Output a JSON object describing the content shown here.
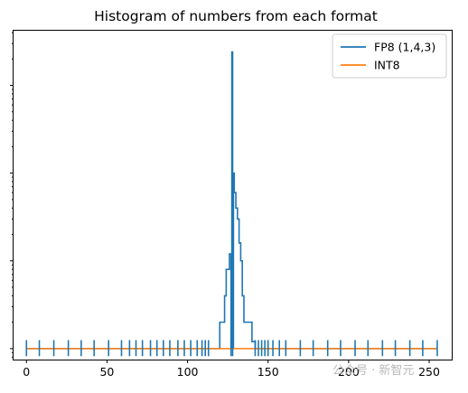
{
  "chart_data": {
    "type": "line",
    "title": "Histogram of numbers from each format",
    "xlabel": "",
    "ylabel": "",
    "xlim": [
      -8,
      264
    ],
    "x_ticks": [
      0,
      50,
      100,
      150,
      200,
      250
    ],
    "y_scale": "log",
    "ylim": [
      0.75,
      4200
    ],
    "grid": false,
    "legend_placement": "top-right",
    "series": [
      {
        "name": "FP8 (1,4,3)",
        "color": "#1f77b4",
        "x": [
          0,
          8,
          17,
          26,
          34,
          42,
          51,
          59,
          64,
          68,
          72,
          77,
          81,
          85,
          89,
          94,
          98,
          102,
          106,
          109,
          111,
          113,
          120,
          121,
          122,
          123,
          124,
          125,
          126,
          127,
          127.5,
          128,
          128.5,
          129,
          130,
          131,
          132,
          133,
          134,
          135,
          136,
          137,
          138,
          139,
          140,
          142,
          144,
          146,
          148,
          150,
          153,
          157,
          161,
          170,
          178,
          187,
          195,
          204,
          212,
          221,
          229,
          238,
          246,
          255
        ],
        "y": [
          1,
          1,
          1,
          1,
          1,
          1,
          1,
          1,
          1,
          1,
          1,
          1,
          1,
          1,
          1,
          1,
          1,
          1,
          1,
          1,
          1,
          1,
          2,
          2,
          2,
          4,
          8,
          8,
          12,
          1,
          2400,
          1,
          100,
          60,
          40,
          30,
          16,
          10,
          4,
          2,
          2,
          2,
          2,
          2,
          1.2,
          1,
          1,
          1,
          1,
          1,
          1,
          1,
          1,
          1,
          1,
          1,
          1,
          1,
          1,
          1,
          1,
          1,
          1,
          1
        ]
      },
      {
        "name": "INT8",
        "color": "#ff7f0e",
        "x": [
          0,
          255
        ],
        "y": [
          1,
          1
        ]
      }
    ]
  },
  "watermark": "公众号 · 新智元"
}
